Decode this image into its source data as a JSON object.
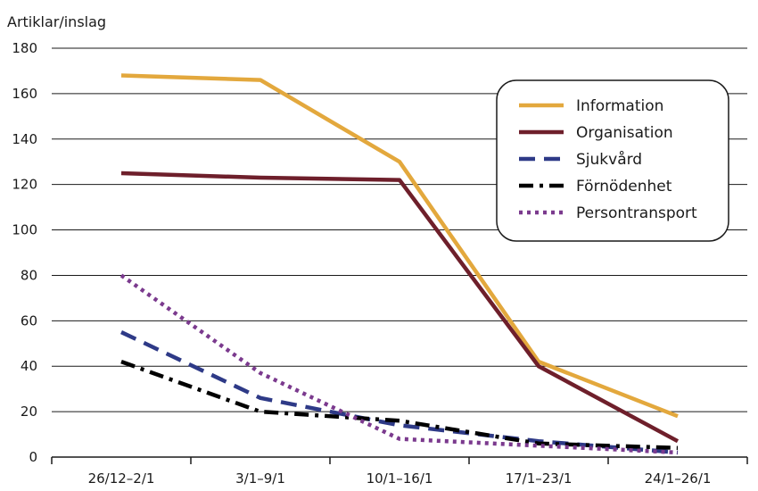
{
  "chart_data": {
    "type": "line",
    "title": "",
    "ylabel": "Artiklar/inslag",
    "xlabel": "",
    "ylim": [
      0,
      180
    ],
    "yticks": [
      0,
      20,
      40,
      60,
      80,
      100,
      120,
      140,
      160,
      180
    ],
    "categories": [
      "26/12–2/1",
      "3/1–9/1",
      "10/1–16/1",
      "17/1–23/1",
      "24/1–26/1"
    ],
    "grid": "horizontal",
    "legend_position": "top-right",
    "series": [
      {
        "name": "Information",
        "values": [
          168,
          166,
          130,
          42,
          18
        ],
        "color": "#E3A83D",
        "dash": "solid"
      },
      {
        "name": "Organisation",
        "values": [
          125,
          123,
          122,
          40,
          7
        ],
        "color": "#6E1F2B",
        "dash": "solid"
      },
      {
        "name": "Sjukvård",
        "values": [
          55,
          26,
          14,
          7,
          2
        ],
        "color": "#2E3A87",
        "dash": "dash"
      },
      {
        "name": "Förnödenhet",
        "values": [
          42,
          20,
          16,
          6,
          4
        ],
        "color": "#000000",
        "dash": "dashdot"
      },
      {
        "name": "Persontransport",
        "values": [
          80,
          37,
          8,
          5,
          2
        ],
        "color": "#7B3A8E",
        "dash": "dot"
      }
    ]
  }
}
